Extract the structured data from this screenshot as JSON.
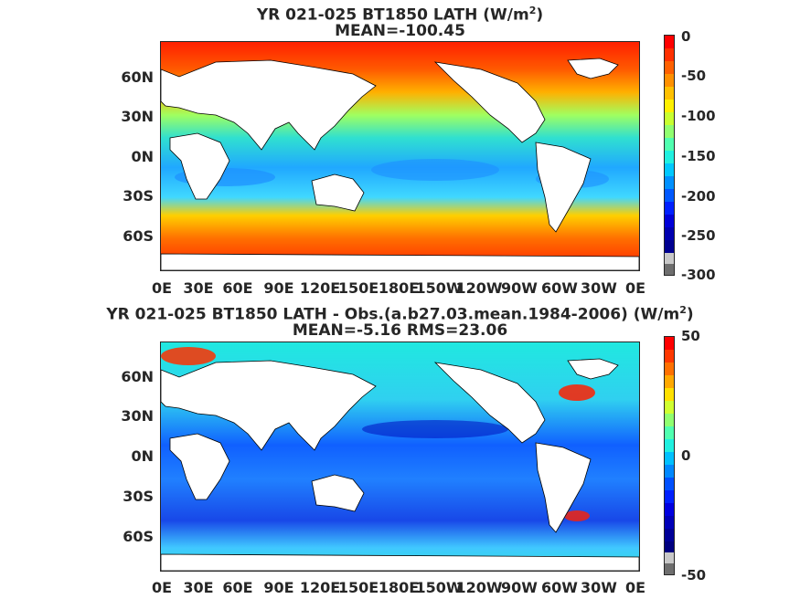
{
  "panels": [
    {
      "title_line1": "YR 021-025 BT1850  LATH (W/m",
      "title_sup": "2",
      "title_line1_end": ")",
      "title_line2": "MEAN=-100.45",
      "colorbar_ticks": [
        "0",
        "-50",
        "-100",
        "-150",
        "-200",
        "-250",
        "-300"
      ]
    },
    {
      "title_line1": "YR 021-025 BT1850 LATH - Obs.(a.b27.03.mean.1984-2006) (W/m",
      "title_sup": "2",
      "title_line1_end": ")",
      "title_line2": "MEAN=-5.16 RMS=23.06",
      "colorbar_ticks": [
        "50",
        "0",
        "-50"
      ]
    }
  ],
  "lat_ticks": [
    "60N",
    "30N",
    "0N",
    "30S",
    "60S"
  ],
  "lon_ticks": [
    "0E",
    "30E",
    "60E",
    "90E",
    "120E",
    "150E",
    "180E",
    "150W",
    "120W",
    "90W",
    "60W",
    "30W",
    "0E"
  ],
  "chart_data": [
    {
      "type": "heatmap",
      "title": "YR 021-025 BT1850  LATH (W/m2)",
      "subtitle": "MEAN=-100.45",
      "x_ticks": [
        "0E",
        "30E",
        "60E",
        "90E",
        "120E",
        "150E",
        "180E",
        "150W",
        "120W",
        "90W",
        "60W",
        "30W",
        "0E"
      ],
      "y_ticks": [
        "60N",
        "30N",
        "0N",
        "30S",
        "60S"
      ],
      "colorbar": {
        "min": -300,
        "max": 0,
        "ticks": [
          0,
          -50,
          -100,
          -150,
          -200,
          -250,
          -300
        ],
        "colormap": "jet"
      },
      "mean": -100.45
    },
    {
      "type": "heatmap",
      "title": "YR 021-025 BT1850 LATH - Obs.(a.b27.03.mean.1984-2006) (W/m2)",
      "subtitle": "MEAN=-5.16 RMS=23.06",
      "x_ticks": [
        "0E",
        "30E",
        "60E",
        "90E",
        "120E",
        "150E",
        "180E",
        "150W",
        "120W",
        "90W",
        "60W",
        "30W",
        "0E"
      ],
      "y_ticks": [
        "60N",
        "30N",
        "0N",
        "30S",
        "60S"
      ],
      "colorbar": {
        "min": -50,
        "max": 50,
        "ticks": [
          50,
          0,
          -50
        ],
        "colormap": "jet"
      },
      "mean": -5.16,
      "rms": 23.06
    }
  ]
}
